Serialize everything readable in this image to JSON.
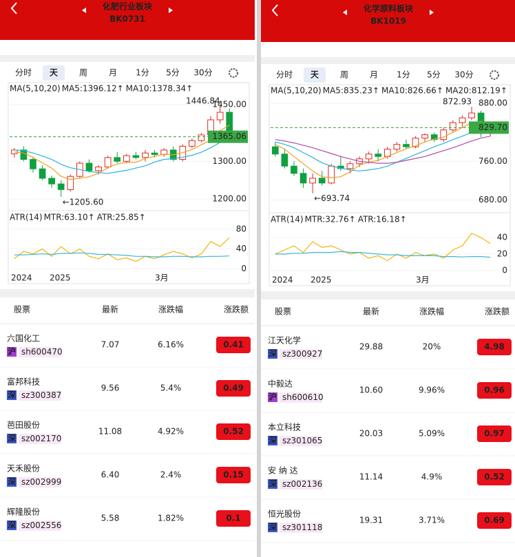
{
  "panels": [
    {
      "title": "化肥行业板块",
      "code": "BK0731",
      "tabs": [
        {
          "label": "分时"
        },
        {
          "label": "天",
          "selected": true
        },
        {
          "label": "周"
        },
        {
          "label": "月"
        },
        {
          "label": "1分"
        },
        {
          "label": "5分"
        },
        {
          "label": "30分"
        }
      ],
      "chart": {
        "legend": "MA(5,10,20)",
        "series": [
          {
            "name": "MA5:1396.12↑",
            "color": "#f0a020",
            "values": [
              1325,
              1322,
              1310,
              1296,
              1282,
              1260,
              1252,
              1255,
              1259,
              1268,
              1283,
              1293,
              1297,
              1297,
              1308,
              1313,
              1319,
              1317,
              1323,
              1331,
              1344,
              1356,
              1381,
              1396.12
            ]
          },
          {
            "name": "MA10:1378.34↑",
            "color": "#27b3dc",
            "values": [
              1330,
              1328,
              1322,
              1314,
              1305,
              1292,
              1283,
              1278,
              1273,
              1270,
              1268,
              1272,
              1276,
              1282,
              1288,
              1298,
              1305,
              1307,
              1311,
              1316,
              1324,
              1336,
              1350,
              1378.34
            ]
          }
        ],
        "candles": [
          [
            1320,
            1335,
            1310,
            1330
          ],
          [
            1330,
            1340,
            1300,
            1305
          ],
          [
            1305,
            1312,
            1270,
            1280
          ],
          [
            1280,
            1290,
            1250,
            1255
          ],
          [
            1255,
            1262,
            1230,
            1240
          ],
          [
            1240,
            1250,
            1205.6,
            1225
          ],
          [
            1225,
            1265,
            1220,
            1260
          ],
          [
            1260,
            1300,
            1255,
            1295
          ],
          [
            1295,
            1305,
            1270,
            1275
          ],
          [
            1275,
            1290,
            1265,
            1285
          ],
          [
            1285,
            1315,
            1280,
            1310
          ],
          [
            1310,
            1325,
            1295,
            1300
          ],
          [
            1300,
            1320,
            1295,
            1315
          ],
          [
            1315,
            1325,
            1305,
            1310
          ],
          [
            1310,
            1330,
            1300,
            1322
          ],
          [
            1322,
            1330,
            1310,
            1318
          ],
          [
            1318,
            1335,
            1312,
            1330
          ],
          [
            1330,
            1340,
            1300,
            1305
          ],
          [
            1305,
            1345,
            1300,
            1340
          ],
          [
            1340,
            1360,
            1335,
            1355
          ],
          [
            1355,
            1375,
            1350,
            1370
          ],
          [
            1370,
            1420,
            1365,
            1410
          ],
          [
            1410,
            1446.84,
            1400,
            1430
          ],
          [
            1430,
            1440,
            1360,
            1365.06
          ]
        ],
        "ylim": [
          1180,
          1463
        ],
        "yticks": [
          {
            "value": 1450,
            "label": "1450.00"
          },
          {
            "value": 1300,
            "label": "1300.00"
          },
          {
            "value": 1200,
            "label": "1200.00"
          }
        ],
        "last": {
          "value": 1365.06,
          "label": "1365.06"
        },
        "high": {
          "value": 1446.84,
          "label": "1446.84"
        },
        "low": {
          "value": 1205.6,
          "label": "←1205.60"
        }
      },
      "atr": {
        "legend": "ATR(14)",
        "series": [
          {
            "name": "MTR:63.10↑",
            "color": "#f2b400",
            "values": [
              20,
              35,
              30,
              40,
              25,
              45,
              30,
              40,
              25,
              20,
              30,
              18,
              22,
              15,
              25,
              20,
              28,
              35,
              30,
              22,
              30,
              55,
              45,
              63.1
            ]
          },
          {
            "name": "ATR:25.85↑",
            "color": "#35b6e0",
            "values": [
              28,
              28,
              29,
              30,
              29,
              31,
              31,
              32,
              31,
              29,
              29,
              28,
              27,
              25,
              25,
              24,
              24,
              25,
              25,
              24,
              24,
              25,
              25,
              25.85
            ]
          }
        ],
        "ylim": [
          -8,
          84
        ],
        "yticks": [
          0,
          40,
          80
        ],
        "x_labels": [
          "2024",
          "2025",
          "3月"
        ]
      },
      "table": {
        "headers": [
          "股票",
          "最新",
          "涨跌幅",
          "涨跌额"
        ],
        "rows": [
          {
            "name": "六国化工",
            "market": "沪",
            "market_color": "#a23cd4",
            "code": "sh600470",
            "price": "7.07",
            "pct": "6.16%",
            "change": "0.41"
          },
          {
            "name": "富邦科技",
            "market": "深",
            "market_color": "#3b58d6",
            "code": "sz300387",
            "price": "9.56",
            "pct": "5.4%",
            "change": "0.49"
          },
          {
            "name": "芭田股份",
            "market": "深",
            "market_color": "#3b58d6",
            "code": "sz002170",
            "price": "11.08",
            "pct": "4.92%",
            "change": "0.52"
          },
          {
            "name": "天禾股份",
            "market": "深",
            "market_color": "#3b58d6",
            "code": "sz002999",
            "price": "6.40",
            "pct": "2.4%",
            "change": "0.15"
          },
          {
            "name": "辉隆股份",
            "market": "深",
            "market_color": "#3b58d6",
            "code": "sz002556",
            "price": "5.58",
            "pct": "1.82%",
            "change": "0.1"
          }
        ]
      }
    },
    {
      "title": "化学原料板块",
      "code": "BK1019",
      "tabs": [
        {
          "label": "分时"
        },
        {
          "label": "天",
          "selected": true
        },
        {
          "label": "周"
        },
        {
          "label": "月"
        },
        {
          "label": "1分"
        },
        {
          "label": "5分"
        },
        {
          "label": "30分"
        }
      ],
      "chart": {
        "legend": "MA(5,10,20)",
        "series": [
          {
            "name": "MA5:835.23↑",
            "color": "#f0a020",
            "values": [
              795,
              785,
              770,
              755,
              740,
              728,
              726,
              728,
              738,
              752,
              758,
              762,
              770,
              778,
              786,
              792,
              800,
              806,
              810,
              820,
              830,
              840,
              843,
              835.23
            ]
          },
          {
            "name": "MA10:826.66↑",
            "color": "#27b3dc",
            "values": [
              800,
              795,
              788,
              778,
              768,
              757,
              750,
              746,
              742,
              740,
              742,
              745,
              750,
              758,
              766,
              774,
              782,
              790,
              797,
              805,
              812,
              820,
              826,
              826.66
            ]
          },
          {
            "name": "MA20:812.19↑",
            "color": "#b04aa8",
            "values": [
              805,
              802,
              798,
              793,
              788,
              782,
              776,
              770,
              765,
              760,
              758,
              756,
              756,
              758,
              762,
              766,
              770,
              776,
              782,
              788,
              795,
              802,
              808,
              812.19
            ]
          }
        ],
        "candles": [
          [
            790,
            800,
            770,
            775
          ],
          [
            775,
            785,
            745,
            750
          ],
          [
            750,
            760,
            730,
            735
          ],
          [
            735,
            745,
            705,
            715
          ],
          [
            715,
            735,
            693.74,
            725
          ],
          [
            725,
            740,
            710,
            715
          ],
          [
            715,
            755,
            712,
            750
          ],
          [
            750,
            770,
            740,
            745
          ],
          [
            745,
            760,
            735,
            755
          ],
          [
            755,
            770,
            748,
            765
          ],
          [
            765,
            780,
            755,
            775
          ],
          [
            775,
            785,
            760,
            770
          ],
          [
            770,
            790,
            765,
            785
          ],
          [
            785,
            800,
            780,
            795
          ],
          [
            795,
            805,
            785,
            790
          ],
          [
            790,
            812,
            787,
            808
          ],
          [
            808,
            818,
            800,
            815
          ],
          [
            815,
            820,
            800,
            805
          ],
          [
            805,
            830,
            800,
            825
          ],
          [
            825,
            845,
            820,
            840
          ],
          [
            840,
            855,
            830,
            850
          ],
          [
            850,
            872.93,
            845,
            860
          ],
          [
            860,
            865,
            810,
            820
          ],
          [
            820,
            840,
            812,
            829.7
          ]
        ],
        "ylim": [
          662,
          883
        ],
        "yticks": [
          {
            "value": 880,
            "label": "880.00"
          },
          {
            "value": 760,
            "label": "760.00"
          },
          {
            "value": 680,
            "label": "680.00"
          }
        ],
        "last": {
          "value": 829.7,
          "label": "829.70"
        },
        "high": {
          "value": 872.93,
          "label": "872.93"
        },
        "low": {
          "value": 693.74,
          "label": "←693.74"
        }
      },
      "atr": {
        "legend": "ATR(14)",
        "series": [
          {
            "name": "MTR:32.76↑",
            "color": "#f2b400",
            "values": [
              20,
              25,
              30,
              22,
              35,
              28,
              30,
              25,
              20,
              22,
              15,
              18,
              12,
              20,
              15,
              22,
              18,
              20,
              15,
              25,
              30,
              45,
              40,
              32.76
            ]
          },
          {
            "name": "ATR:16.18↑",
            "color": "#35b6e0",
            "values": [
              20,
              20,
              21,
              21,
              22,
              22,
              22,
              23,
              22,
              22,
              21,
              20,
              19,
              19,
              18,
              18,
              18,
              18,
              17,
              17,
              16.5,
              17,
              17,
              16.18
            ]
          }
        ],
        "ylim": [
          -5,
          50
        ],
        "yticks": [
          0,
          20,
          40
        ],
        "x_labels": [
          "2024",
          "2025",
          "3月"
        ]
      },
      "table": {
        "headers": [
          "股票",
          "最新",
          "涨跌幅",
          "涨跌额"
        ],
        "rows": [
          {
            "name": "江天化学",
            "market": "深",
            "market_color": "#3b58d6",
            "code": "sz300927",
            "price": "29.88",
            "pct": "20%",
            "change": "4.98"
          },
          {
            "name": "中毅达",
            "market": "沪",
            "market_color": "#a23cd4",
            "code": "sh600610",
            "price": "10.60",
            "pct": "9.96%",
            "change": "0.96"
          },
          {
            "name": "本立科技",
            "market": "深",
            "market_color": "#3b58d6",
            "code": "sz301065",
            "price": "20.03",
            "pct": "5.09%",
            "change": "0.97"
          },
          {
            "name": "安 纳 达",
            "market": "深",
            "market_color": "#3b58d6",
            "code": "sz002136",
            "price": "11.14",
            "pct": "4.9%",
            "change": "0.52"
          },
          {
            "name": "恒光股份",
            "market": "深",
            "market_color": "#3b58d6",
            "code": "sz301118",
            "price": "19.31",
            "pct": "3.71%",
            "change": "0.69"
          }
        ]
      }
    }
  ]
}
